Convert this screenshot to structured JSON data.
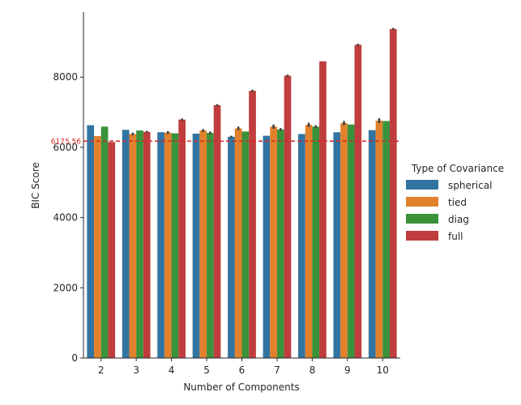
{
  "chart_data": {
    "type": "bar",
    "title": "",
    "xlabel": "Number of Components",
    "ylabel": "BIC Score",
    "categories": [
      "2",
      "3",
      "4",
      "5",
      "6",
      "7",
      "8",
      "9",
      "10"
    ],
    "ylim": [
      0,
      9850
    ],
    "yticks": [
      "0",
      "2000",
      "4000",
      "6000",
      "8000"
    ],
    "grid": false,
    "legend": {
      "title": "Type of Covariance",
      "placement": "right"
    },
    "series": [
      {
        "name": "spherical",
        "color": "#3274a1",
        "values": [
          6630,
          6500,
          6430,
          6390,
          6300,
          6330,
          6380,
          6430,
          6490
        ],
        "error": [
          0,
          0,
          0,
          0,
          30,
          0,
          0,
          0,
          0
        ]
      },
      {
        "name": "tied",
        "color": "#e1812c",
        "values": [
          6320,
          6380,
          6420,
          6480,
          6540,
          6590,
          6640,
          6690,
          6760
        ],
        "error": [
          0,
          40,
          40,
          40,
          50,
          60,
          60,
          60,
          70
        ]
      },
      {
        "name": "diag",
        "color": "#3a923a",
        "values": [
          6590,
          6480,
          6400,
          6410,
          6450,
          6510,
          6590,
          6650,
          6750
        ],
        "error": [
          0,
          0,
          0,
          40,
          0,
          40,
          40,
          0,
          0
        ]
      },
      {
        "name": "full",
        "color": "#c03d3e",
        "values": [
          6150,
          6440,
          6790,
          7200,
          7610,
          8040,
          8450,
          8920,
          9370
        ],
        "error": [
          0,
          30,
          30,
          30,
          30,
          30,
          0,
          30,
          30
        ]
      }
    ],
    "reference_line": {
      "value": 6175.56,
      "label": "6175.56",
      "color": "#d62728"
    }
  }
}
